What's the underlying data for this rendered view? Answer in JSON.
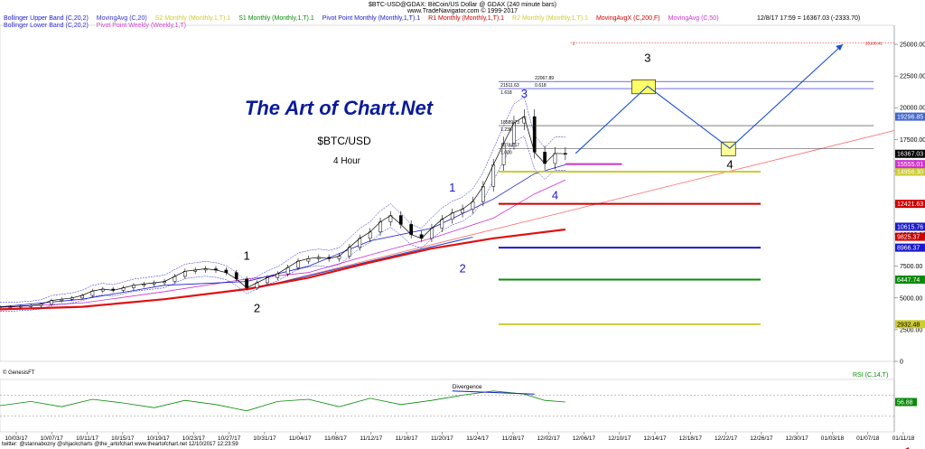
{
  "header": {
    "title_line": "$BTC-USD@GDAX:  BitCoin/US Dollar @ GDAX   (240 minute bars)",
    "site_line": "www.TradeNavigator.com © 1999-2017",
    "datetime": "12/8/17 17:59 = 16367.03 (-2333.70)"
  },
  "legend": [
    {
      "label": "Bollinger Upper Band (C,20,2)",
      "color": "#1a1acc"
    },
    {
      "label": "MovingAvg (C,20)",
      "color": "#3333cc"
    },
    {
      "label": "S2 Monthly (Monthly,1,T).1",
      "color": "#cccc33"
    },
    {
      "label": "S1 Monthly (Monthly,1,T).1",
      "color": "#0a8a0a"
    },
    {
      "label": "Pivot Point Monthly (Monthly,1,T).1",
      "color": "#1a1acc"
    },
    {
      "label": "R1 Monthly (Monthly,1,T).1",
      "color": "#cc0000"
    },
    {
      "label": "R2 Monthly (Monthly,1,T).1",
      "color": "#cccc33"
    },
    {
      "label": "MovingAvgX (C,200,F)",
      "color": "#cc0000"
    },
    {
      "label": "MovingAvg (C,50)",
      "color": "#cc33cc"
    }
  ],
  "legend2": [
    {
      "label": "Bollinger Lower Band (C,20,2)",
      "color": "#1a1acc"
    },
    {
      "label": "Pivot Point Weekly (Weekly,1,T)",
      "color": "#cc33cc"
    }
  ],
  "branding": {
    "logo": "The Art of Chart.Net",
    "symbol": "$BTC/USD",
    "timeframe": "4 Hour"
  },
  "colors": {
    "upper_band": "#1a1acc",
    "ma200": "#e01010",
    "ma50": "#cc33cc",
    "s2": "#cccc33",
    "s1": "#0a8a0a",
    "pivot": "#1a1acc",
    "r1": "#cc0000",
    "r2": "#cccc33",
    "projection": "#1a4fd6",
    "rsi": "#0a8a0a",
    "trend": "#ff6666"
  },
  "chart_data": {
    "type": "line",
    "title": "$BTC/USD",
    "subtitle": "4 Hour",
    "ylim": [
      0,
      26500
    ],
    "y_ticks": [
      0,
      2500,
      5000,
      7500,
      10000,
      12500,
      15000,
      17500,
      20000,
      22500,
      25000
    ],
    "y_tick_labels": [
      "0",
      "2500.00",
      "5000.00",
      "7500.00",
      "10000.00",
      "12500.00",
      "15000.00",
      "17500.00",
      "20000.00",
      "22500.00",
      "25000.00"
    ],
    "x_tick_labels": [
      "10/03/17",
      "10/07/17",
      "10/11/17",
      "10/15/17",
      "10/19/17",
      "10/23/17",
      "10/27/17",
      "10/31/17",
      "11/04/17",
      "11/08/17",
      "11/12/17",
      "11/16/17",
      "11/20/17",
      "11/24/17",
      "11/28/17",
      "12/02/17",
      "12/06/17",
      "12/10/17",
      "12/14/17",
      "12/18/17",
      "12/22/17",
      "12/26/17",
      "12/30/17",
      "01/03/18",
      "01/07/18",
      "01/11/18"
    ],
    "price_series": {
      "name": "$BTC-USD@GDAX",
      "points": [
        [
          0,
          4300
        ],
        [
          1,
          4300
        ],
        [
          2,
          4350
        ],
        [
          3,
          4400
        ],
        [
          4,
          4500
        ],
        [
          5,
          4800
        ],
        [
          6,
          4900
        ],
        [
          7,
          5000
        ],
        [
          8,
          5200
        ],
        [
          9,
          5550
        ],
        [
          10,
          5700
        ],
        [
          11,
          5600
        ],
        [
          12,
          5800
        ],
        [
          13,
          6000
        ],
        [
          14,
          6100
        ],
        [
          15,
          6200
        ],
        [
          16,
          6300
        ],
        [
          17,
          6700
        ],
        [
          18,
          7100
        ],
        [
          19,
          7200
        ],
        [
          20,
          7300
        ],
        [
          21,
          7200
        ],
        [
          22,
          7000
        ],
        [
          23,
          6500
        ],
        [
          24,
          5800
        ],
        [
          25,
          6200
        ],
        [
          26,
          6600
        ],
        [
          27,
          6900
        ],
        [
          28,
          7400
        ],
        [
          29,
          7900
        ],
        [
          30,
          8100
        ],
        [
          31,
          8200
        ],
        [
          32,
          8100
        ],
        [
          33,
          8300
        ],
        [
          34,
          9000
        ],
        [
          35,
          9700
        ],
        [
          36,
          10200
        ],
        [
          37,
          11000
        ],
        [
          38,
          11500
        ],
        [
          39,
          10800
        ],
        [
          40,
          10000
        ],
        [
          41,
          9700
        ],
        [
          42,
          10500
        ],
        [
          43,
          11200
        ],
        [
          44,
          11700
        ],
        [
          45,
          12000
        ],
        [
          46,
          12600
        ],
        [
          47,
          13800
        ],
        [
          48,
          15500
        ],
        [
          49,
          17200
        ],
        [
          50,
          18800
        ],
        [
          51,
          19300
        ],
        [
          52,
          16500
        ],
        [
          53,
          15600
        ],
        [
          54,
          16400
        ],
        [
          55,
          16367
        ]
      ]
    },
    "series": [
      {
        "name": "MovingAvgX (C,200,F)",
        "points": [
          [
            0,
            4100
          ],
          [
            8,
            4300
          ],
          [
            16,
            4900
          ],
          [
            24,
            5700
          ],
          [
            30,
            6600
          ],
          [
            36,
            7800
          ],
          [
            42,
            8900
          ],
          [
            48,
            9700
          ],
          [
            55,
            10400
          ]
        ]
      },
      {
        "name": "MovingAvg (C,50)",
        "points": [
          [
            0,
            4250
          ],
          [
            8,
            4600
          ],
          [
            16,
            5500
          ],
          [
            24,
            6500
          ],
          [
            30,
            7000
          ],
          [
            36,
            8400
          ],
          [
            42,
            9700
          ],
          [
            48,
            11300
          ],
          [
            52,
            13200
          ],
          [
            55,
            14300
          ]
        ]
      },
      {
        "name": "MovingAvg (C,20)",
        "points": [
          [
            0,
            4300
          ],
          [
            8,
            4900
          ],
          [
            16,
            6000
          ],
          [
            24,
            6300
          ],
          [
            30,
            7500
          ],
          [
            36,
            9500
          ],
          [
            42,
            10500
          ],
          [
            48,
            12800
          ],
          [
            52,
            14800
          ],
          [
            55,
            15500
          ]
        ]
      }
    ],
    "levels": [
      {
        "name": "R2 Monthly (Monthly,1,T).1",
        "value": 14956.3,
        "label": "14956.30"
      },
      {
        "name": "R1 Monthly (Monthly,1,T).1",
        "value": 12421.63,
        "label": "12421.63"
      },
      {
        "name": "Pivot Point Monthly (Monthly,1,T).1",
        "value": 8966.37,
        "label": "8966.37"
      },
      {
        "name": "S1 Monthly (Monthly,1,T).1",
        "value": 6447.74,
        "label": "6447.74"
      },
      {
        "name": "S2 Monthly (Monthly,1,T).1",
        "value": 2932.48,
        "label": "2932.48"
      },
      {
        "name": "Pivot Point Weekly (Weekly,1,T)",
        "value": 15555.01,
        "label": "15555.01"
      }
    ],
    "right_labels": [
      {
        "value": 19296.85,
        "label": "19296.85"
      },
      {
        "value": 16367.03,
        "label": "16367.03"
      },
      {
        "value": 10615.76,
        "label": "10615.76"
      },
      {
        "value": 9825.37,
        "label": "9825.37"
      }
    ],
    "fib_levels": [
      {
        "value": 21511.63,
        "label": "21511.63",
        "ratio": "1.618"
      },
      {
        "value": 22067.89,
        "label": "22067.89",
        "ratio": "0.618"
      },
      {
        "value": 18589.73,
        "label": "18589.73",
        "ratio": "1.236"
      },
      {
        "value": 16784.57,
        "label": "16784.57",
        "ratio": "1.000"
      }
    ],
    "target_level": {
      "value": 25100.41,
      "label": "25100.41",
      "ratio": "2"
    },
    "projection_path": [
      [
        56,
        16400
      ],
      [
        63,
        21700
      ],
      [
        71,
        16800
      ],
      [
        82,
        25000
      ]
    ],
    "wave_labels": [
      {
        "text": "1",
        "x": 24,
        "y": 8000,
        "color": "#000000"
      },
      {
        "text": "2",
        "x": 25,
        "y": 3900,
        "color": "#000000"
      },
      {
        "text": "1",
        "x": 44,
        "y": 13400,
        "color": "#1a1acc"
      },
      {
        "text": "2",
        "x": 45,
        "y": 7000,
        "color": "#1a1acc"
      },
      {
        "text": "3",
        "x": 51,
        "y": 20800,
        "color": "#1a1acc"
      },
      {
        "text": "4",
        "x": 54,
        "y": 12800,
        "color": "#1a1acc"
      },
      {
        "text": "3",
        "x": 63,
        "y": 23600,
        "color": "#000000"
      },
      {
        "text": "4",
        "x": 71,
        "y": 15200,
        "color": "#000000"
      }
    ],
    "rsi": {
      "name": "RSI (C,14,T)",
      "value_label": "56.88",
      "ylim": [
        0,
        100
      ],
      "upper": 70,
      "lower": 30,
      "points": [
        [
          0,
          50
        ],
        [
          3,
          58
        ],
        [
          6,
          48
        ],
        [
          9,
          62
        ],
        [
          12,
          55
        ],
        [
          15,
          46
        ],
        [
          18,
          60
        ],
        [
          21,
          52
        ],
        [
          24,
          40
        ],
        [
          27,
          58
        ],
        [
          30,
          62
        ],
        [
          33,
          48
        ],
        [
          36,
          64
        ],
        [
          39,
          52
        ],
        [
          42,
          60
        ],
        [
          45,
          70
        ],
        [
          48,
          78
        ],
        [
          51,
          72
        ],
        [
          53,
          60
        ],
        [
          55,
          56.88
        ]
      ],
      "annotation": "Divergence"
    }
  },
  "footer": {
    "copyright": "© GenesisFT",
    "credits": "twitter: @stannabozny  @shjackcharts  @the_artofchart         www.theartofchart.net         12/10/2017 12:23:59"
  }
}
